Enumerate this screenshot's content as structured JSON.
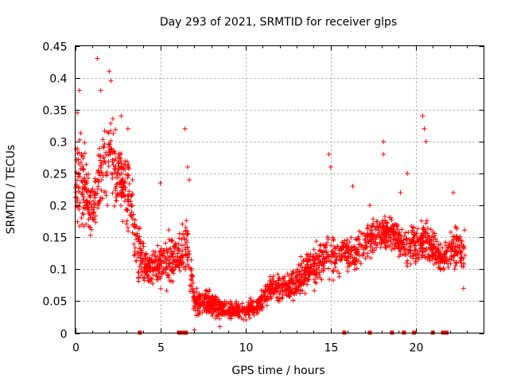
{
  "chart_data": {
    "type": "scatter",
    "title": "Day 293 of 2021, SRMTID for receiver glps",
    "xlabel": "GPS time / hours",
    "ylabel": "SRMTID / TECUs",
    "xlim": [
      0,
      24
    ],
    "ylim": [
      0,
      0.45
    ],
    "xticks": [
      0,
      5,
      10,
      15,
      20
    ],
    "yticks": [
      0,
      0.05,
      0.1,
      0.15,
      0.2,
      0.25,
      0.3,
      0.35,
      0.4,
      0.45
    ],
    "grid": true,
    "marker": "+",
    "color": "#ff0000",
    "envelope": [
      {
        "t": 0.0,
        "lo": 0.15,
        "hi": 0.32
      },
      {
        "t": 0.3,
        "lo": 0.12,
        "hi": 0.38
      },
      {
        "t": 0.7,
        "lo": 0.14,
        "hi": 0.28
      },
      {
        "t": 1.0,
        "lo": 0.13,
        "hi": 0.26
      },
      {
        "t": 1.5,
        "lo": 0.16,
        "hi": 0.33
      },
      {
        "t": 2.0,
        "lo": 0.18,
        "hi": 0.37
      },
      {
        "t": 2.5,
        "lo": 0.17,
        "hi": 0.34
      },
      {
        "t": 3.0,
        "lo": 0.15,
        "hi": 0.31
      },
      {
        "t": 3.3,
        "lo": 0.1,
        "hi": 0.28
      },
      {
        "t": 3.7,
        "lo": 0.06,
        "hi": 0.19
      },
      {
        "t": 4.2,
        "lo": 0.06,
        "hi": 0.14
      },
      {
        "t": 5.0,
        "lo": 0.06,
        "hi": 0.15
      },
      {
        "t": 5.5,
        "lo": 0.05,
        "hi": 0.19
      },
      {
        "t": 6.0,
        "lo": 0.07,
        "hi": 0.15
      },
      {
        "t": 6.5,
        "lo": 0.08,
        "hi": 0.22
      },
      {
        "t": 7.0,
        "lo": 0.02,
        "hi": 0.08
      },
      {
        "t": 8.0,
        "lo": 0.02,
        "hi": 0.07
      },
      {
        "t": 9.0,
        "lo": 0.015,
        "hi": 0.055
      },
      {
        "t": 10.0,
        "lo": 0.015,
        "hi": 0.055
      },
      {
        "t": 10.8,
        "lo": 0.02,
        "hi": 0.065
      },
      {
        "t": 11.5,
        "lo": 0.04,
        "hi": 0.1
      },
      {
        "t": 12.5,
        "lo": 0.04,
        "hi": 0.1
      },
      {
        "t": 13.5,
        "lo": 0.05,
        "hi": 0.14
      },
      {
        "t": 14.5,
        "lo": 0.07,
        "hi": 0.16
      },
      {
        "t": 15.5,
        "lo": 0.08,
        "hi": 0.17
      },
      {
        "t": 16.5,
        "lo": 0.09,
        "hi": 0.16
      },
      {
        "t": 17.5,
        "lo": 0.11,
        "hi": 0.2
      },
      {
        "t": 18.5,
        "lo": 0.12,
        "hi": 0.2
      },
      {
        "t": 19.5,
        "lo": 0.1,
        "hi": 0.17
      },
      {
        "t": 20.5,
        "lo": 0.1,
        "hi": 0.19
      },
      {
        "t": 21.5,
        "lo": 0.08,
        "hi": 0.15
      },
      {
        "t": 22.5,
        "lo": 0.09,
        "hi": 0.18
      },
      {
        "t": 22.9,
        "lo": 0.08,
        "hi": 0.18
      }
    ],
    "highlights": [
      {
        "x": 0.25,
        "y": 0.38
      },
      {
        "x": 0.12,
        "y": 0.345
      },
      {
        "x": 1.3,
        "y": 0.43
      },
      {
        "x": 1.5,
        "y": 0.38
      },
      {
        "x": 2.0,
        "y": 0.41
      },
      {
        "x": 2.1,
        "y": 0.395
      },
      {
        "x": 2.7,
        "y": 0.34
      },
      {
        "x": 3.1,
        "y": 0.32
      },
      {
        "x": 6.45,
        "y": 0.32
      },
      {
        "x": 6.6,
        "y": 0.26
      },
      {
        "x": 6.7,
        "y": 0.24
      },
      {
        "x": 5.0,
        "y": 0.235
      },
      {
        "x": 14.9,
        "y": 0.28
      },
      {
        "x": 15.0,
        "y": 0.26
      },
      {
        "x": 16.3,
        "y": 0.23
      },
      {
        "x": 17.3,
        "y": 0.2
      },
      {
        "x": 18.1,
        "y": 0.3
      },
      {
        "x": 18.1,
        "y": 0.28
      },
      {
        "x": 19.1,
        "y": 0.22
      },
      {
        "x": 19.5,
        "y": 0.25
      },
      {
        "x": 20.4,
        "y": 0.34
      },
      {
        "x": 20.5,
        "y": 0.32
      },
      {
        "x": 20.6,
        "y": 0.3
      },
      {
        "x": 22.2,
        "y": 0.22
      },
      {
        "x": 22.8,
        "y": 0.07
      },
      {
        "x": 7.0,
        "y": 0.005
      },
      {
        "x": 8.5,
        "y": 0.01
      }
    ],
    "zero_markers": [
      3.8,
      6.1,
      6.2,
      6.3,
      6.5,
      15.8,
      17.3,
      18.6,
      19.3,
      19.9,
      21.0,
      21.6,
      21.8
    ]
  }
}
